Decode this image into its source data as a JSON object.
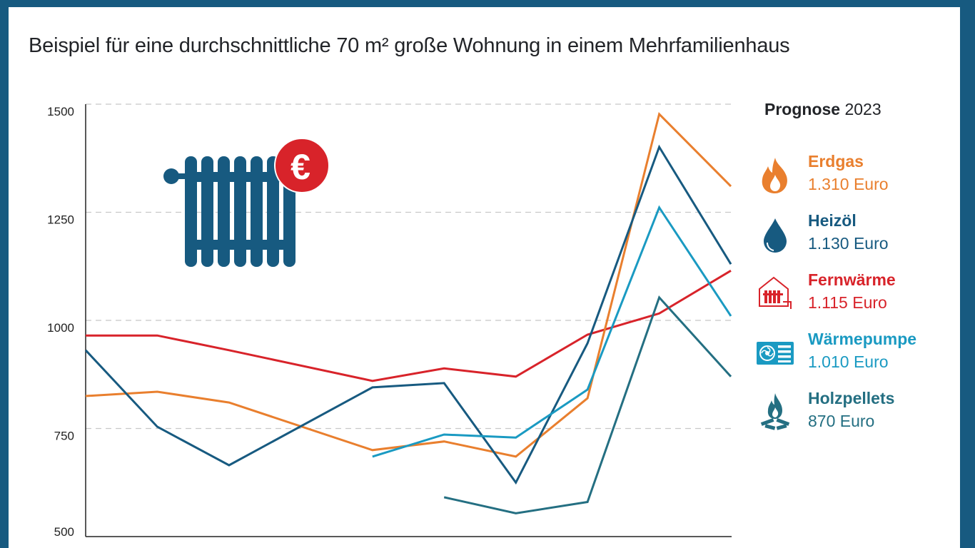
{
  "title": "Beispiel für eine durchschnittliche 70 m² große Wohnung in einem Mehrfamilienhaus",
  "legend": {
    "heading_bold": "Prognose",
    "heading_year": "2023",
    "items": [
      {
        "name": "Erdgas",
        "value": "1.310 Euro",
        "color": "#e97f2e",
        "icon": "flame-icon"
      },
      {
        "name": "Heizöl",
        "value": "1.130 Euro",
        "color": "#175a80",
        "icon": "oil-drop-icon"
      },
      {
        "name": "Fernwärme",
        "value": "1.115 Euro",
        "color": "#d8232a",
        "icon": "district-heating-icon"
      },
      {
        "name": "Wärmepumpe",
        "value": "1.010 Euro",
        "color": "#1a9ac2",
        "icon": "heat-pump-icon"
      },
      {
        "name": "Holzpellets",
        "value": "870 Euro",
        "color": "#246f82",
        "icon": "campfire-icon"
      }
    ]
  },
  "decoration": {
    "icon": "radiator-euro-icon",
    "euro_symbol": "€",
    "radiator_color": "#175a80",
    "badge_color": "#d8232a"
  },
  "chart_data": {
    "type": "line",
    "title": "Beispiel für eine durchschnittliche 70 m² große Wohnung in einem Mehrfamilienhaus",
    "xlabel": "",
    "ylabel": "",
    "xlim": [
      0,
      9
    ],
    "ylim": [
      500,
      1500
    ],
    "yticks": [
      500,
      750,
      1000,
      1250,
      1500
    ],
    "ytick_labels": [
      "500",
      "750",
      "1000",
      "1250",
      "1500"
    ],
    "grid": "horizontal dashed",
    "legend_position": "right",
    "series": [
      {
        "name": "Fernwärme",
        "color": "#d8232a",
        "x": [
          0,
          1,
          2,
          4,
          5,
          6,
          7,
          8,
          9
        ],
        "values": [
          965,
          965,
          931,
          860,
          889,
          870,
          967,
          1016,
          1115
        ]
      },
      {
        "name": "Erdgas",
        "color": "#e97f2e",
        "x": [
          0,
          1,
          2,
          4,
          5,
          6,
          7,
          8,
          9
        ],
        "values": [
          825,
          835,
          810,
          700,
          720,
          685,
          820,
          1477,
          1310
        ]
      },
      {
        "name": "Heizöl",
        "color": "#175a80",
        "x": [
          0,
          1,
          2,
          4,
          5,
          6,
          7,
          8,
          9
        ],
        "values": [
          931,
          754,
          665,
          845,
          855,
          625,
          947,
          1401,
          1130
        ]
      },
      {
        "name": "Wärmepumpe",
        "color": "#1a9ac2",
        "x": [
          4,
          5,
          6,
          7,
          8,
          9
        ],
        "values": [
          685,
          736,
          729,
          840,
          1261,
          1010
        ]
      },
      {
        "name": "Holzpellets",
        "color": "#246f82",
        "x": [
          5,
          6,
          7,
          8,
          9
        ],
        "values": [
          591,
          554,
          580,
          1053,
          870
        ]
      }
    ]
  }
}
